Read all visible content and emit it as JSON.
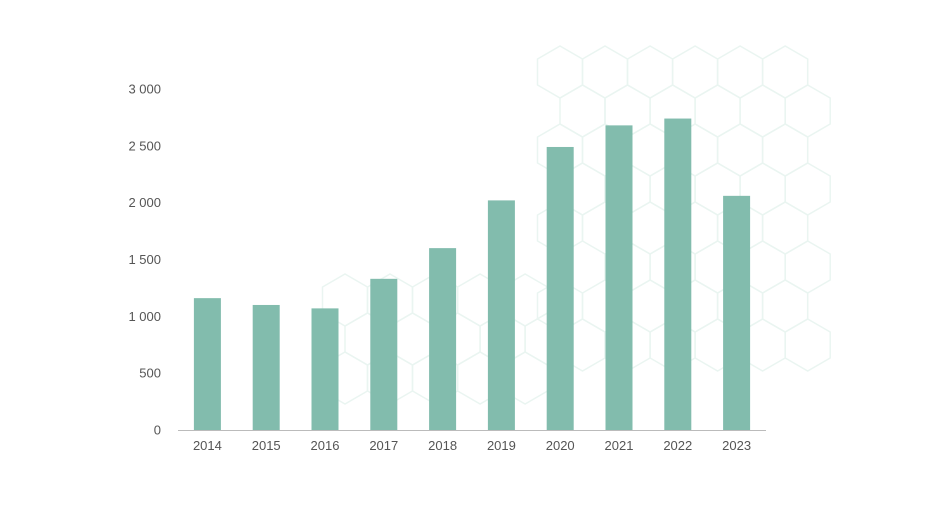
{
  "chart_data": {
    "type": "bar",
    "categories": [
      "2014",
      "2015",
      "2016",
      "2017",
      "2018",
      "2019",
      "2020",
      "2021",
      "2022",
      "2023"
    ],
    "values": [
      1160,
      1100,
      1070,
      1330,
      1600,
      2020,
      2490,
      2680,
      2740,
      2060
    ],
    "ylim": [
      0,
      3000
    ],
    "yticks": [
      0,
      500,
      1000,
      1500,
      2000,
      2500,
      3000
    ],
    "ytick_labels": [
      "0",
      "500",
      "1 000",
      "1 500",
      "2 000",
      "2 500",
      "3 000"
    ],
    "title": "",
    "xlabel": "",
    "ylabel": "",
    "grid": false,
    "legend": "none",
    "colors": {
      "bar": "#82bcad",
      "axis": "#bbbbbb",
      "tick_text": "#555555",
      "pattern": "#eaf5f1"
    }
  }
}
